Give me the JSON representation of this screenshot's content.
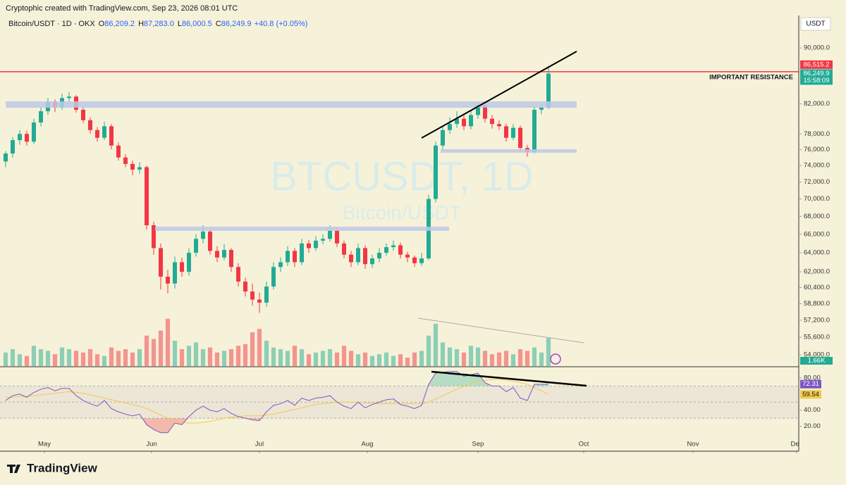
{
  "header": {
    "credit": "Cryptophic created with TradingView.com, Sep 23, 2026 08:01 UTC",
    "symbol": "Bitcoin/USDT · 1D · OKX",
    "o_label": "O",
    "o": "86,209.2",
    "h_label": "H",
    "h": "87,283.0",
    "l_label": "L",
    "l": "86,000.5",
    "c_label": "C",
    "c": "86,249.9",
    "change": "+40.8 (+0.05%)"
  },
  "watermark": {
    "title": "BTCUSDT, 1D",
    "subtitle": "Bitcoin/USDT"
  },
  "footer": {
    "brand": "TradingView"
  },
  "chart_data": {
    "type": "candlestick",
    "currency": "USDT",
    "log_scale": true,
    "xlim": [
      0,
      112.5
    ],
    "ylim": [
      53000,
      95000
    ],
    "xticks": [
      {
        "value": 5.5,
        "label": "May"
      },
      {
        "value": 20.7,
        "label": "Jun"
      },
      {
        "value": 36,
        "label": "Jul"
      },
      {
        "value": 51.3,
        "label": "Aug"
      },
      {
        "value": 67,
        "label": "Sep"
      },
      {
        "value": 82,
        "label": "Oct"
      },
      {
        "value": 97.5,
        "label": "Nov"
      },
      {
        "value": 112.2,
        "label": "Dec"
      }
    ],
    "yticks": [
      {
        "value": 54000,
        "label": "54,000.0"
      },
      {
        "value": 55600,
        "label": "55,600.0"
      },
      {
        "value": 57200,
        "label": "57,200.0"
      },
      {
        "value": 58800,
        "label": "58,800.0"
      },
      {
        "value": 60400,
        "label": "60,400.0"
      },
      {
        "value": 62000,
        "label": "62,000.0"
      },
      {
        "value": 64000,
        "label": "64,000.0"
      },
      {
        "value": 66000,
        "label": "66,000.0"
      },
      {
        "value": 68000,
        "label": "68,000.0"
      },
      {
        "value": 70000,
        "label": "70,000.0"
      },
      {
        "value": 72000,
        "label": "72,000.0"
      },
      {
        "value": 74000,
        "label": "74,000.0"
      },
      {
        "value": 76000,
        "label": "76,000.0"
      },
      {
        "value": 78000,
        "label": "78,000.0"
      },
      {
        "value": 82000,
        "label": "82,000.0"
      },
      {
        "value": 90000,
        "label": "90,000.0"
      }
    ],
    "up_color": "#22ab94",
    "down_color": "#f23645",
    "open": [
      74500,
      75500,
      77200,
      78000,
      77000,
      79500,
      81000,
      82300,
      81500,
      82800,
      83000,
      81200,
      79800,
      78500,
      77500,
      79000,
      76500,
      75000,
      74200,
      73500,
      73800,
      67000,
      64500,
      61500,
      60800,
      63000,
      62000,
      64000,
      65500,
      66300,
      64200,
      63500,
      64300,
      62500,
      61000,
      60000,
      59200,
      58900,
      60500,
      62500,
      63000,
      64200,
      63000,
      65000,
      64500,
      65300,
      65500,
      66400,
      65000,
      63800,
      63000,
      64500,
      62800,
      63400,
      64000,
      64600,
      64800,
      63800,
      63500,
      62900,
      63400,
      70000,
      76500,
      78500,
      79300,
      80000,
      79000,
      80500,
      81800,
      80000,
      79300,
      79000,
      77500,
      78800,
      76200,
      75700,
      81200,
      81500
    ],
    "high": [
      75800,
      77600,
      78500,
      78400,
      80000,
      81500,
      82800,
      82600,
      83400,
      83600,
      83200,
      81600,
      80200,
      78900,
      79600,
      79300,
      76900,
      75400,
      74600,
      74400,
      74000,
      67400,
      65000,
      62200,
      63600,
      63500,
      64500,
      66000,
      67000,
      66600,
      64700,
      64900,
      64500,
      62900,
      61400,
      60800,
      59900,
      61000,
      63000,
      63500,
      64700,
      64500,
      65500,
      65400,
      65800,
      66000,
      67000,
      66700,
      65300,
      64200,
      65000,
      64800,
      63800,
      64500,
      65000,
      65300,
      65100,
      64100,
      63700,
      64000,
      70500,
      77000,
      79000,
      80200,
      81000,
      80600,
      81200,
      82200,
      82000,
      80500,
      79800,
      79300,
      79300,
      79100,
      76600,
      81600,
      82000,
      87300
    ],
    "low": [
      73800,
      75000,
      76600,
      76500,
      76700,
      79000,
      80500,
      80900,
      81200,
      82000,
      80800,
      79400,
      78000,
      77000,
      77200,
      76000,
      74600,
      73800,
      72800,
      73000,
      66500,
      63800,
      60200,
      59800,
      60300,
      61500,
      61600,
      63600,
      65000,
      63800,
      63000,
      63200,
      62000,
      60500,
      59500,
      58600,
      57900,
      58500,
      60200,
      62000,
      62600,
      62500,
      62700,
      64000,
      64200,
      64900,
      65200,
      64600,
      63400,
      62500,
      62700,
      62300,
      62400,
      63000,
      63700,
      64200,
      63400,
      63000,
      62500,
      62600,
      63200,
      69600,
      76000,
      78000,
      78800,
      78500,
      78600,
      80000,
      79500,
      78700,
      78500,
      77000,
      77200,
      75700,
      75100,
      75500,
      80600,
      81300
    ],
    "close": [
      75500,
      77200,
      78000,
      77000,
      79500,
      81000,
      82300,
      81500,
      82800,
      83000,
      81200,
      79800,
      78500,
      77500,
      79000,
      76500,
      75000,
      74200,
      73500,
      73800,
      67000,
      64500,
      61500,
      60800,
      63000,
      62000,
      64000,
      65500,
      66300,
      64200,
      63500,
      64300,
      62500,
      61000,
      60000,
      59200,
      58900,
      60500,
      62500,
      63000,
      64200,
      63000,
      65000,
      64500,
      65300,
      65500,
      66400,
      65000,
      63800,
      63000,
      64500,
      62800,
      63400,
      64000,
      64600,
      64800,
      63800,
      63500,
      62900,
      63400,
      70000,
      76500,
      78500,
      79300,
      80000,
      79000,
      80500,
      81800,
      80000,
      79300,
      79000,
      77500,
      78800,
      76200,
      75700,
      81200,
      81500,
      86250
    ],
    "resistance": {
      "value": 86515.2,
      "label": "86,515.2",
      "text": "IMPORTANT RESISTANCE",
      "color": "#f23645"
    },
    "last_price": {
      "label": "86,249.9",
      "countdown": "15:58:09"
    },
    "volume": {
      "ylim": [
        0,
        5
      ],
      "label": "1.66K",
      "values": [
        0.8,
        1.0,
        0.7,
        0.6,
        1.2,
        1.0,
        0.9,
        0.7,
        1.1,
        1.0,
        0.9,
        0.8,
        1.0,
        0.7,
        0.6,
        1.1,
        0.9,
        1.0,
        0.8,
        1.0,
        1.8,
        1.6,
        2.1,
        2.8,
        1.5,
        1.0,
        1.2,
        1.4,
        1.0,
        1.1,
        0.8,
        0.9,
        1.0,
        1.2,
        1.3,
        2.0,
        2.2,
        1.5,
        1.1,
        1.0,
        0.9,
        1.2,
        1.0,
        0.7,
        0.8,
        0.9,
        1.0,
        0.8,
        1.2,
        0.9,
        0.7,
        0.8,
        0.6,
        0.7,
        0.8,
        0.6,
        0.7,
        0.5,
        0.8,
        0.9,
        1.8,
        2.5,
        1.4,
        1.1,
        1.0,
        0.8,
        1.2,
        1.1,
        0.9,
        0.7,
        0.8,
        0.9,
        0.7,
        1.0,
        0.9,
        1.1,
        0.8,
        1.66
      ]
    },
    "rsi": {
      "ylim": [
        -10,
        93
      ],
      "upper": 70,
      "middle": 50,
      "lower": 30,
      "yticks": [
        {
          "value": 20,
          "label": "20.00"
        },
        {
          "value": 40,
          "label": "40.00"
        },
        {
          "value": 80,
          "label": "80.00"
        }
      ],
      "series": [
        {
          "color": "#7e57c2",
          "value_label": "72.31",
          "values": [
            52,
            58,
            60,
            56,
            62,
            66,
            68,
            64,
            67,
            67,
            58,
            52,
            48,
            45,
            52,
            42,
            38,
            35,
            33,
            35,
            22,
            16,
            12,
            12,
            24,
            22,
            32,
            40,
            45,
            40,
            38,
            42,
            36,
            32,
            30,
            28,
            27,
            38,
            46,
            48,
            52,
            46,
            55,
            52,
            55,
            56,
            58,
            50,
            45,
            42,
            50,
            43,
            47,
            50,
            53,
            54,
            47,
            45,
            42,
            46,
            72,
            86,
            87,
            88,
            88,
            82,
            84,
            86,
            74,
            70,
            70,
            63,
            68,
            55,
            52,
            72,
            72,
            72.31
          ]
        },
        {
          "color": "#f2c94c",
          "value_label": "59.54",
          "values": [
            56,
            56,
            57,
            57,
            58,
            59,
            60,
            61,
            62,
            63,
            62,
            61,
            59,
            57,
            55,
            53,
            51,
            49,
            47,
            45,
            42,
            38,
            34,
            30,
            27,
            25,
            24,
            24,
            25,
            26,
            28,
            30,
            31,
            32,
            33,
            33,
            33,
            34,
            35,
            37,
            39,
            41,
            43,
            45,
            47,
            48,
            49,
            50,
            50,
            50,
            50,
            49,
            49,
            48,
            48,
            48,
            48,
            48,
            48,
            48,
            50,
            54,
            58,
            62,
            66,
            70,
            73,
            76,
            77,
            78,
            78,
            77,
            76,
            74,
            72,
            68,
            64,
            59.54
          ]
        }
      ]
    }
  }
}
